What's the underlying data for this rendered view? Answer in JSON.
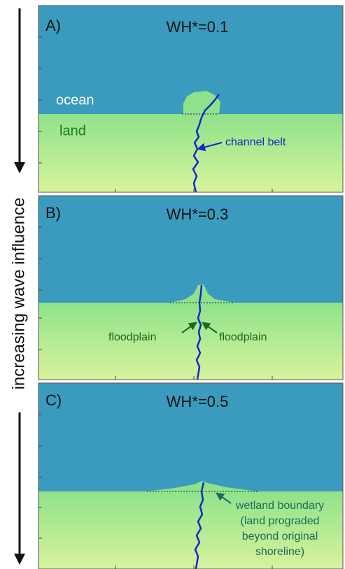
{
  "side_label": "increasing wave influence",
  "panels": [
    {
      "label": "A)",
      "title": "WH*=0.1",
      "annotations": [
        "ocean",
        "land",
        "channel belt"
      ]
    },
    {
      "label": "B)",
      "title": "WH*=0.3",
      "annotations": [
        "floodplain",
        "floodplain"
      ]
    },
    {
      "label": "C)",
      "title": "WH*=0.5",
      "annotations": [
        "wetland boundary",
        "(land prograded",
        "beyond original",
        "shoreline)"
      ]
    }
  ]
}
